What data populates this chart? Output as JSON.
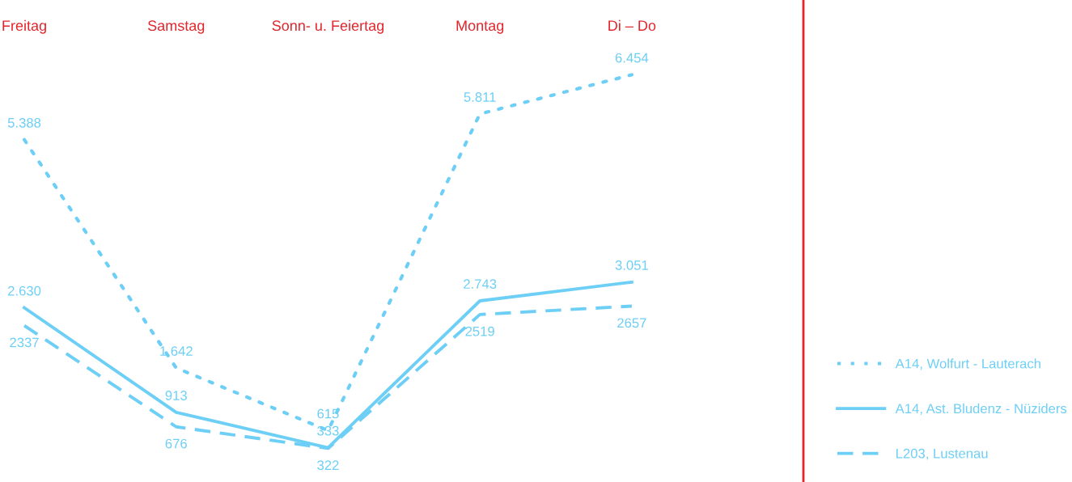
{
  "chart_data": {
    "type": "line",
    "categories": [
      "Freitag",
      "Samstag",
      "Sonn- u. Feiertag",
      "Montag",
      "Di – Do"
    ],
    "legend": "right",
    "grid": false,
    "series": [
      {
        "name": "A14, Wolfurt - Lauterach",
        "color": "#6dcff6",
        "line_style": "dotted",
        "values": [
          5388,
          1642,
          615,
          5811,
          6454
        ],
        "value_labels": [
          "5.388",
          "1.642",
          "615",
          "5.811",
          "6.454"
        ]
      },
      {
        "name": "A14, Ast. Bludenz - Nüziders",
        "color": "#6dcff6",
        "line_style": "solid",
        "values": [
          2630,
          913,
          333,
          2743,
          3051
        ],
        "value_labels": [
          "2.630",
          "913",
          "333",
          "2.743",
          "3.051"
        ]
      },
      {
        "name": "L203, Lustenau",
        "color": "#6dcff6",
        "line_style": "dashed",
        "values": [
          2337,
          676,
          322,
          2519,
          2657
        ],
        "value_labels": [
          "2337",
          "676",
          "322",
          "2519",
          "2657"
        ]
      }
    ]
  }
}
